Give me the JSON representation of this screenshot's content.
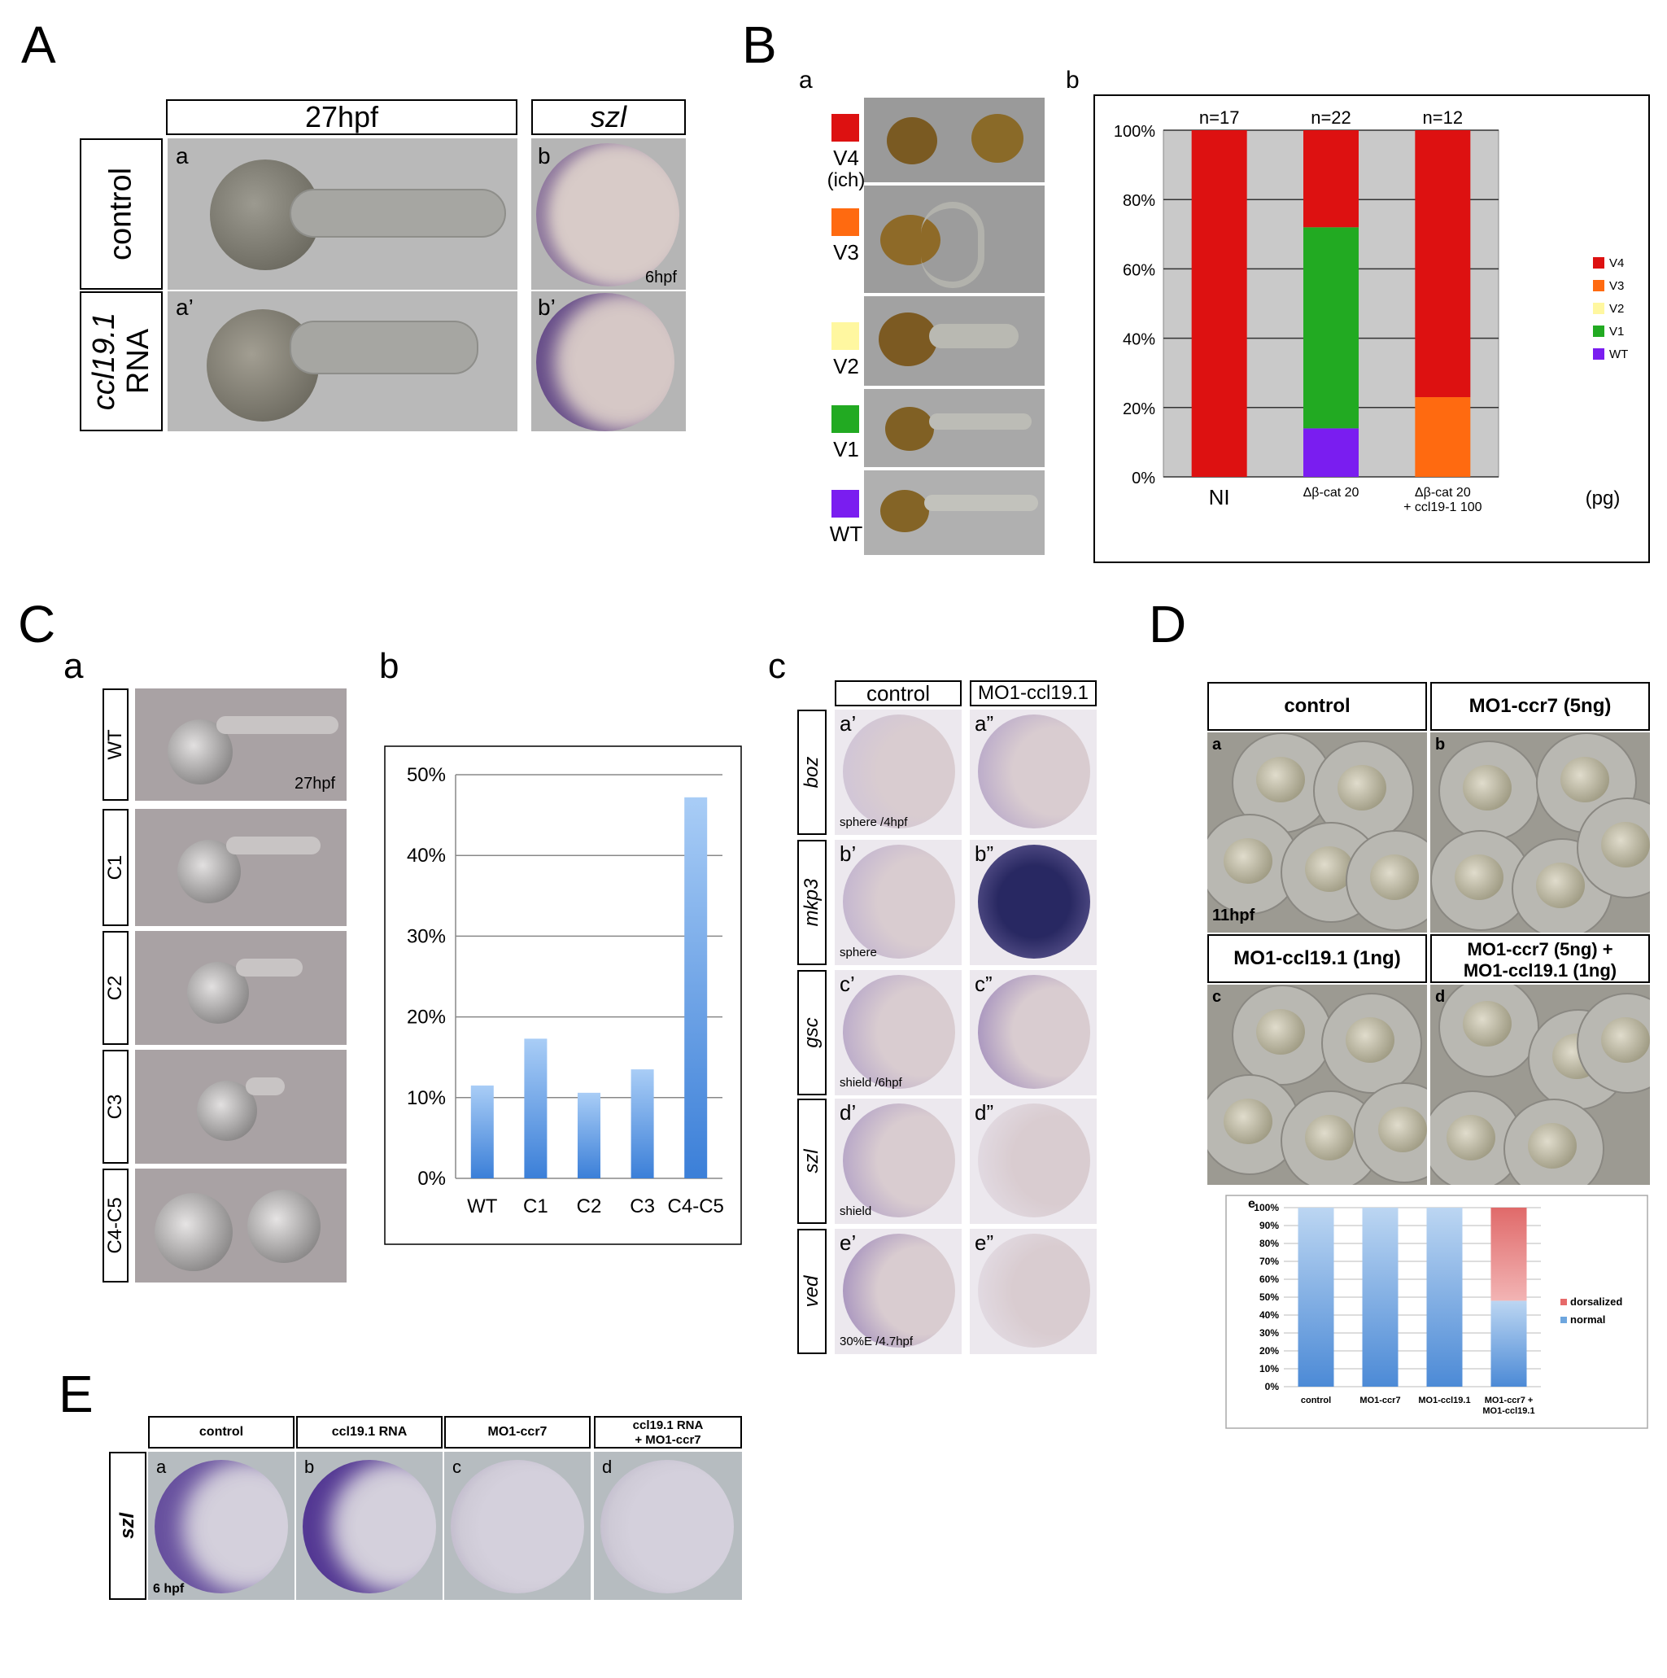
{
  "A": {
    "letter": "A",
    "col1_header": "27hpf",
    "col2_header": "szl",
    "row1_label": "control",
    "row2_label_1": "ccl19.1",
    "row2_label_2": "RNA",
    "a": "a",
    "a2": "a’",
    "b": "b",
    "b2": "b’",
    "stage": "6hpf"
  },
  "B": {
    "letter": "B",
    "a": "a",
    "b": "b",
    "classes": [
      {
        "label": "V4",
        "extra": "(ich)",
        "color": "#dd1111"
      },
      {
        "label": "V3",
        "extra": "",
        "color": "#ff6a10"
      },
      {
        "label": "V2",
        "extra": "",
        "color": "#fff7a0"
      },
      {
        "label": "V1",
        "extra": "",
        "color": "#22aa22"
      },
      {
        "label": "WT",
        "extra": "",
        "color": "#7a1df0"
      }
    ],
    "unit": "(pg)",
    "group1_line2": "+ ccl19-1 100"
  },
  "C": {
    "letter": "C",
    "a": "a",
    "b": "b",
    "c": "c",
    "rows": [
      "WT",
      "C1",
      "C2",
      "C3",
      "C4-C5"
    ],
    "stage": "27hpf",
    "c_headers": [
      "control",
      "MO1-ccl19.1"
    ],
    "c_genes": [
      "boz",
      "mkp3",
      "gsc",
      "szl",
      "ved"
    ],
    "c_left_labels": [
      "a’",
      "b’",
      "c’",
      "d’",
      "e’"
    ],
    "c_right_labels": [
      "a”",
      "b”",
      "c”",
      "d”",
      "e”"
    ],
    "c_stages": [
      "sphere /4hpf",
      "sphere",
      "shield /6hpf",
      "shield",
      "30%E /4.7hpf"
    ]
  },
  "D": {
    "letter": "D",
    "headers": [
      "control",
      "MO1-ccr7 (5ng)",
      "MO1-ccl19.1 (1ng)",
      "MO1-ccr7 (5ng) +",
      "MO1-ccl19.1 (1ng)"
    ],
    "panels": [
      "a",
      "b",
      "c",
      "d",
      "e"
    ],
    "stage": "11hpf"
  },
  "E": {
    "letter": "E",
    "headers": [
      "control",
      "ccl19.1 RNA",
      "MO1-ccr7",
      "ccl19.1 RNA",
      "+ MO1-ccr7"
    ],
    "gene": "szl",
    "panels": [
      "a",
      "b",
      "c",
      "d"
    ],
    "stage": "6 hpf"
  },
  "chart_data": [
    {
      "type": "bar",
      "stacked": true,
      "categories": [
        "NI",
        "Δβ-cat  20",
        "Δβ-cat 20"
      ],
      "counts": [
        "n=17",
        "n=22",
        "n=12"
      ],
      "series": [
        {
          "name": "WT",
          "values": [
            0,
            14,
            0
          ],
          "color": "#7a1df0"
        },
        {
          "name": "V1",
          "values": [
            0,
            58,
            0
          ],
          "color": "#22aa22"
        },
        {
          "name": "V2",
          "values": [
            0,
            0,
            0
          ],
          "color": "#fff7a0"
        },
        {
          "name": "V3",
          "values": [
            0,
            0,
            23
          ],
          "color": "#ff6a10"
        },
        {
          "name": "V4",
          "values": [
            100,
            28,
            77
          ],
          "color": "#dd1111"
        }
      ],
      "legend": [
        "V4",
        "V3",
        "V2",
        "V1",
        "WT"
      ],
      "yticks": [
        "0%",
        "20%",
        "40%",
        "60%",
        "80%",
        "100%"
      ],
      "ylim": [
        0,
        100
      ],
      "legend_position": "right",
      "grid": true
    },
    {
      "type": "bar",
      "categories": [
        "WT",
        "C1",
        "C2",
        "C3",
        "C4-C5"
      ],
      "values": [
        11.5,
        17.3,
        10.6,
        13.5,
        47.2
      ],
      "yticks": [
        "0%",
        "10%",
        "20%",
        "30%",
        "40%",
        "50%"
      ],
      "ylim": [
        0,
        50
      ],
      "grid": true
    },
    {
      "type": "bar",
      "stacked": true,
      "categories": [
        "control",
        "MO1-ccr7",
        "MO1-ccl19.1",
        "MO1-ccr7 +"
      ],
      "category_line2": [
        "",
        "",
        "",
        "MO1-ccl19.1"
      ],
      "series": [
        {
          "name": "normal",
          "values": [
            100,
            100,
            100,
            48
          ],
          "color": "#6ea6de"
        },
        {
          "name": "dorsalized",
          "values": [
            0,
            0,
            0,
            52
          ],
          "color": "#e66a6a"
        }
      ],
      "legend": [
        "dorsalized",
        "normal"
      ],
      "yticks": [
        "0%",
        "10%",
        "20%",
        "30%",
        "40%",
        "50%",
        "60%",
        "70%",
        "80%",
        "90%",
        "100%"
      ],
      "ylim": [
        0,
        100
      ],
      "legend_position": "right",
      "grid": true
    }
  ]
}
